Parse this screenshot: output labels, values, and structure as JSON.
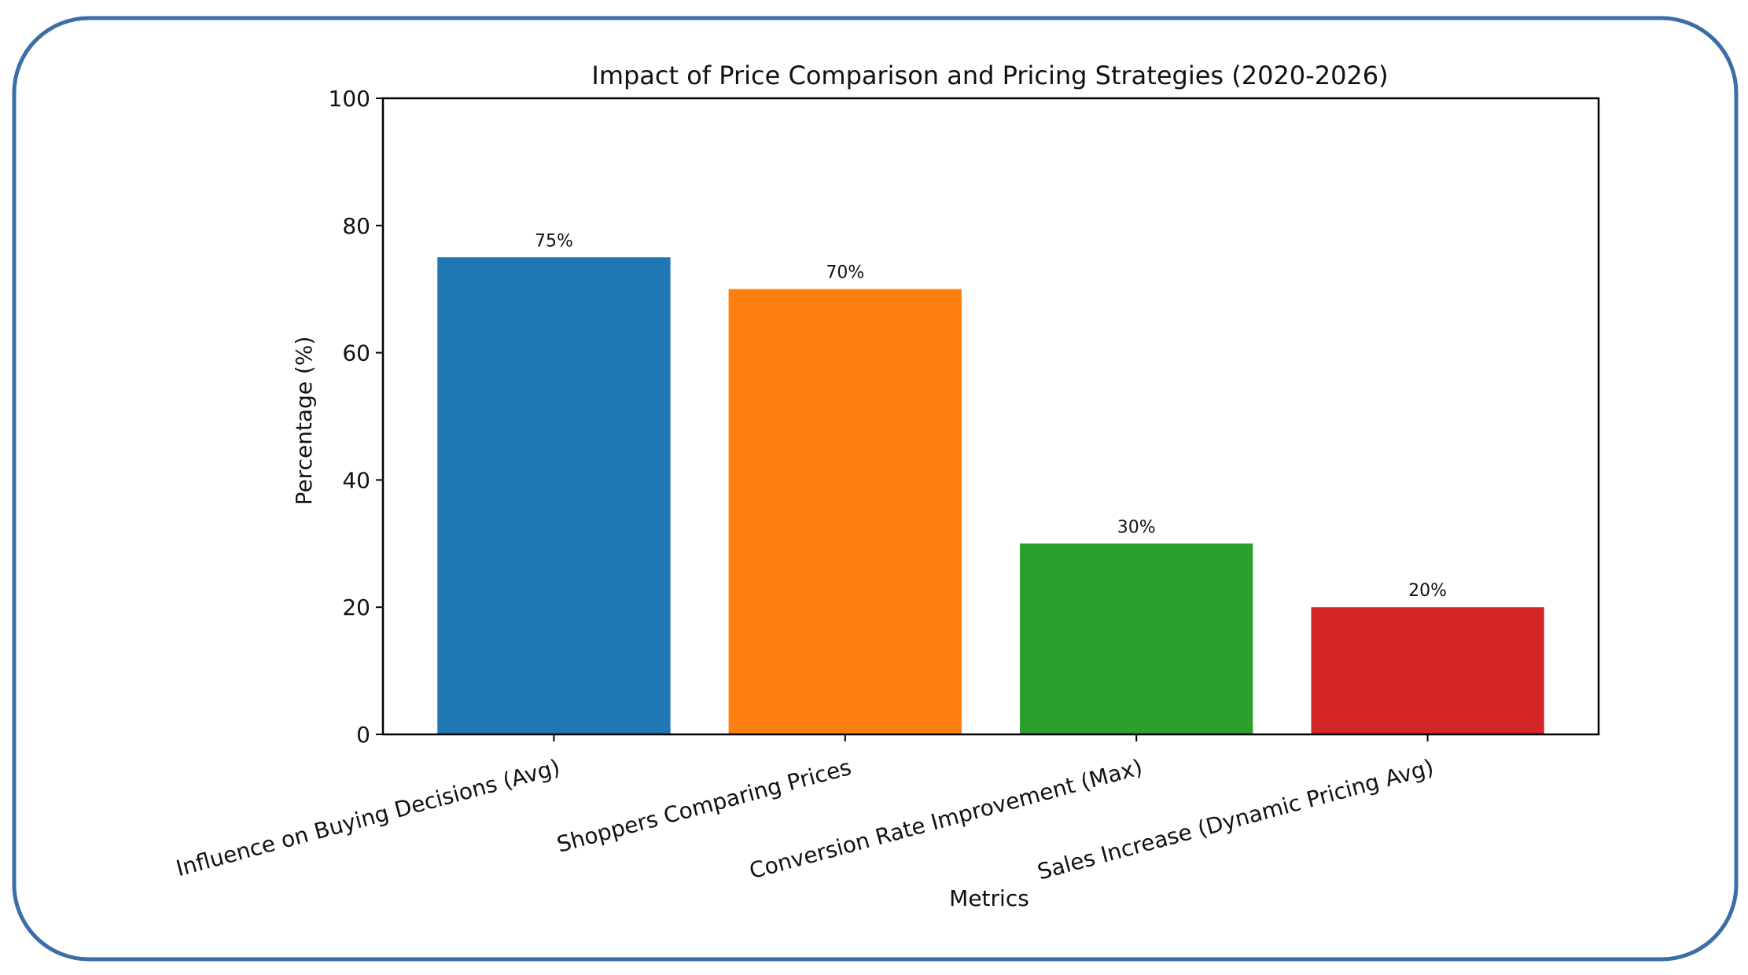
{
  "frame_color": "#3a6ea5",
  "chart_data": {
    "type": "bar",
    "title": "Impact of Price Comparison and Pricing Strategies (2020-2026)",
    "xlabel": "Metrics",
    "ylabel": "Percentage (%)",
    "categories": [
      "Influence on Buying Decisions (Avg)",
      "Shoppers Comparing Prices",
      "Conversion Rate Improvement (Max)",
      "Sales Increase (Dynamic Pricing Avg)"
    ],
    "values": [
      75,
      70,
      30,
      20
    ],
    "data_labels": [
      "75%",
      "70%",
      "30%",
      "20%"
    ],
    "colors": [
      "#1f77b4",
      "#ff7f0e",
      "#2ca02c",
      "#d62728"
    ],
    "ylim": [
      0,
      100
    ],
    "yticks": [
      0,
      20,
      40,
      60,
      80,
      100
    ],
    "ytick_labels": [
      "0",
      "20",
      "40",
      "60",
      "80",
      "100"
    ],
    "grid": false,
    "legend": "none"
  }
}
